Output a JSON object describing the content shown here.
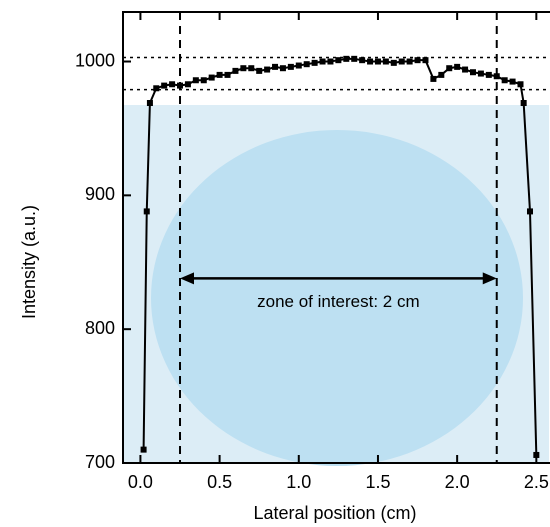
{
  "chart_data": {
    "type": "line",
    "x_label": "Lateral position (cm)",
    "y_label": "Intensity (a.u.)",
    "xlim": [
      -0.11,
      2.58
    ],
    "ylim": [
      700,
      1037
    ],
    "xticks": [
      {
        "value": 0,
        "label": "0.0"
      },
      0.5,
      {
        "value": 1,
        "label": "1.0"
      },
      1.5,
      {
        "value": 2,
        "label": "2.0"
      },
      2.5
    ],
    "yticks": [
      700,
      800,
      900,
      1000
    ],
    "x": [
      0.02,
      0.04,
      0.06,
      0.1,
      0.15,
      0.2,
      0.25,
      0.3,
      0.35,
      0.4,
      0.45,
      0.5,
      0.55,
      0.6,
      0.65,
      0.7,
      0.75,
      0.8,
      0.85,
      0.9,
      0.95,
      1.0,
      1.05,
      1.1,
      1.15,
      1.2,
      1.25,
      1.3,
      1.35,
      1.4,
      1.45,
      1.5,
      1.55,
      1.6,
      1.65,
      1.7,
      1.75,
      1.8,
      1.85,
      1.9,
      1.95,
      2.0,
      2.05,
      2.1,
      2.15,
      2.2,
      2.25,
      2.3,
      2.35,
      2.4,
      2.42,
      2.46,
      2.5
    ],
    "series": [
      {
        "color": "#000000",
        "values": [
          710,
          888,
          969,
          980,
          982,
          983,
          982,
          983,
          986,
          986,
          988,
          990,
          990,
          993,
          995,
          995,
          993,
          994,
          996,
          995,
          996,
          997,
          998,
          999,
          1000,
          1000,
          1001,
          1002,
          1002,
          1001,
          1000,
          1000,
          1000,
          999,
          1000,
          1000,
          1001,
          1001,
          987,
          990,
          995,
          996,
          994,
          992,
          991,
          990,
          989,
          986,
          985,
          983,
          969,
          888,
          706
        ]
      }
    ],
    "hlines": [
      1003,
      979
    ],
    "vlines": [
      0.25,
      2.25
    ],
    "arrow": {
      "x": [
        0.25,
        2.25
      ],
      "y": 838,
      "text": "zone of interest: 2 cm"
    }
  }
}
